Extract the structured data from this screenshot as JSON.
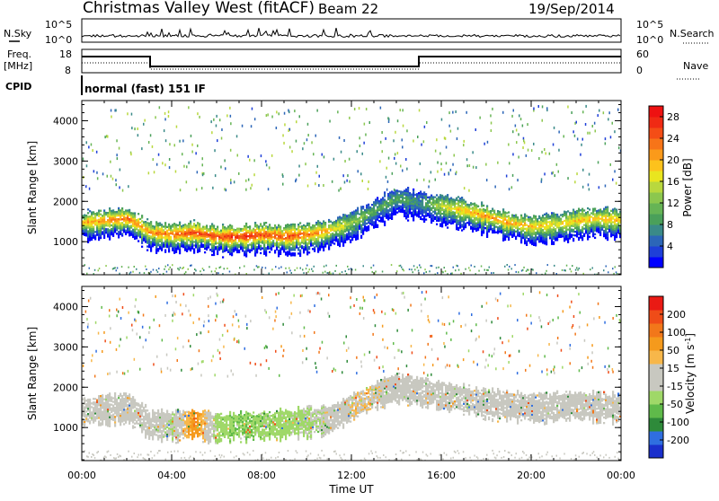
{
  "header": {
    "title": "Christmas Valley West (fitACF)",
    "beam": "Beam 22",
    "date": "19/Sep/2014"
  },
  "status": {
    "nsky_label": "N.Sky",
    "nsky_ticks": [
      "10^5",
      "10^0"
    ],
    "nsearch_label": "N.Search",
    "freq_label_1": "Freq.",
    "freq_label_2": "[MHz]",
    "freq_ticks": [
      "18",
      "8"
    ],
    "nave_label": "Nave",
    "nave_ticks": [
      "60",
      "0"
    ],
    "cpid_label": "CPID",
    "cpid_text": "normal (fast) 151 IF"
  },
  "chart_data": [
    {
      "type": "heatmap",
      "title": "",
      "xlabel": "Time UT",
      "ylabel": "Slant Range [km]",
      "x_ticks": [
        "00:00",
        "04:00",
        "08:00",
        "12:00",
        "16:00",
        "20:00",
        "00:00"
      ],
      "xlim": [
        "00:00",
        "24:00"
      ],
      "y_ticks": [
        1000,
        2000,
        3000,
        4000
      ],
      "ylim": [
        180,
        4500
      ],
      "colorbar": {
        "label": "Power [dB]",
        "ticks": [
          "4",
          "8",
          "12",
          "16",
          "20",
          "24",
          "28"
        ],
        "range": [
          0,
          30
        ],
        "colors": [
          "#0000ff",
          "#1e3fd8",
          "#2c66b8",
          "#3a8a88",
          "#4aa05a",
          "#66b455",
          "#8cc74e",
          "#b9d83e",
          "#e9e51f",
          "#fdc21c",
          "#fb9a1a",
          "#f77418",
          "#f44d16",
          "#f02a14",
          "#ee1111"
        ]
      },
      "series": [
        {
          "points": [
            [
              0.0,
              1500,
              20
            ],
            [
              1.0,
              1550,
              22
            ],
            [
              2.0,
              1600,
              24
            ],
            [
              2.5,
              1450,
              22
            ],
            [
              3.0,
              1250,
              22
            ],
            [
              4.0,
              1200,
              24
            ],
            [
              5.0,
              1250,
              26
            ],
            [
              6.0,
              1150,
              26
            ],
            [
              7.0,
              1150,
              28
            ],
            [
              8.0,
              1200,
              26
            ],
            [
              9.0,
              1150,
              26
            ],
            [
              10.0,
              1200,
              24
            ],
            [
              11.0,
              1300,
              20
            ],
            [
              12.0,
              1500,
              14
            ],
            [
              13.0,
              1800,
              10
            ],
            [
              14.0,
              2100,
              10
            ],
            [
              15.0,
              2000,
              8
            ],
            [
              16.0,
              1900,
              16
            ],
            [
              17.0,
              1800,
              20
            ],
            [
              18.0,
              1650,
              22
            ],
            [
              19.0,
              1500,
              22
            ],
            [
              20.0,
              1400,
              20
            ],
            [
              21.0,
              1450,
              18
            ],
            [
              22.0,
              1550,
              20
            ],
            [
              23.0,
              1600,
              20
            ],
            [
              24.0,
              1550,
              20
            ]
          ]
        }
      ]
    },
    {
      "type": "heatmap",
      "title": "",
      "xlabel": "Time UT",
      "ylabel": "Slant Range [km]",
      "x_ticks": [
        "00:00",
        "04:00",
        "08:00",
        "12:00",
        "16:00",
        "20:00",
        "00:00"
      ],
      "xlim": [
        "00:00",
        "24:00"
      ],
      "y_ticks": [
        1000,
        2000,
        3000,
        4000
      ],
      "ylim": [
        180,
        4500
      ],
      "colorbar": {
        "label": "Velocity [m s^-1]",
        "ticks": [
          "200",
          "100",
          "50",
          "15",
          "-15",
          "-50",
          "-100",
          "-200"
        ],
        "range": [
          -250,
          250
        ],
        "colors": [
          "#1a2fcc",
          "#2f6ee0",
          "#2e8a3a",
          "#5fba4a",
          "#9fd868",
          "#c8c8c0",
          "#c8c8c0",
          "#f7b74a",
          "#f59a1c",
          "#f2771a",
          "#ef4c18",
          "#ea1a14"
        ]
      },
      "series": [
        {
          "points": [
            [
              0.0,
              1500,
              0
            ],
            [
              2.0,
              1600,
              10
            ],
            [
              3.0,
              1200,
              0
            ],
            [
              4.0,
              1150,
              -40
            ],
            [
              5.0,
              1200,
              120
            ],
            [
              6.0,
              1100,
              -60
            ],
            [
              7.0,
              1150,
              -80
            ],
            [
              8.0,
              1150,
              -70
            ],
            [
              9.0,
              1200,
              -60
            ],
            [
              10.0,
              1250,
              -50
            ],
            [
              11.0,
              1300,
              -20
            ],
            [
              12.0,
              1600,
              40
            ],
            [
              13.0,
              1900,
              30
            ],
            [
              14.0,
              2100,
              20
            ],
            [
              15.0,
              2000,
              0
            ],
            [
              16.0,
              1900,
              0
            ],
            [
              18.0,
              1700,
              0
            ],
            [
              20.0,
              1600,
              0
            ],
            [
              22.0,
              1650,
              0
            ],
            [
              24.0,
              1600,
              0
            ]
          ]
        }
      ]
    }
  ]
}
